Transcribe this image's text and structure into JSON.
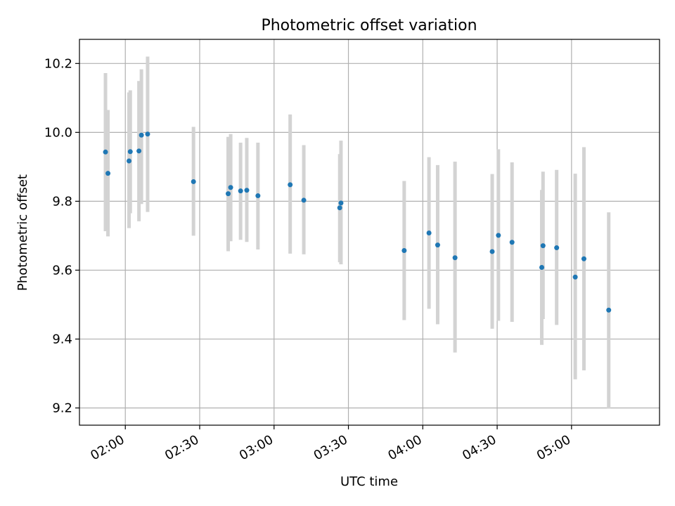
{
  "chart_data": {
    "type": "scatter",
    "title": "Photometric offset variation",
    "xlabel": "UTC time",
    "ylabel": "Photometric offset",
    "xlim": [
      "01:41:30",
      "05:35:30"
    ],
    "ylim": [
      9.15,
      10.27
    ],
    "x_ticks": [
      "02:00",
      "02:30",
      "03:00",
      "03:30",
      "04:00",
      "04:30",
      "05:00"
    ],
    "y_ticks": [
      "9.2",
      "9.4",
      "9.6",
      "9.8",
      "10.0",
      "10.2"
    ],
    "grid": true,
    "colors": {
      "marker": "#1f77b4",
      "errorbar": "#d3d3d3",
      "grid": "#b0b0b0"
    },
    "series": [
      {
        "points": [
          {
            "x": "01:52:00",
            "y": 9.943,
            "ylow": 9.713,
            "yhigh": 10.172
          },
          {
            "x": "01:53:00",
            "y": 9.881,
            "ylow": 9.698,
            "yhigh": 10.065
          },
          {
            "x": "01:61:30",
            "y": 9.917,
            "ylow": 9.722,
            "yhigh": 10.116
          },
          {
            "x": "01:62:00",
            "y": 9.944,
            "ylow": 9.765,
            "yhigh": 10.122
          },
          {
            "x": "01:65:30",
            "y": 9.946,
            "ylow": 9.742,
            "yhigh": 10.149
          },
          {
            "x": "01:66:30",
            "y": 9.992,
            "ylow": 9.792,
            "yhigh": 10.183
          },
          {
            "x": "01:69:00",
            "y": 9.995,
            "ylow": 9.769,
            "yhigh": 10.22
          },
          {
            "x": "02:27:30",
            "y": 9.857,
            "ylow": 9.7,
            "yhigh": 10.016
          },
          {
            "x": "02:41:30",
            "y": 9.822,
            "ylow": 9.655,
            "yhigh": 9.987
          },
          {
            "x": "02:42:30",
            "y": 9.84,
            "ylow": 9.684,
            "yhigh": 9.995
          },
          {
            "x": "02:46:30",
            "y": 9.83,
            "ylow": 9.688,
            "yhigh": 9.97
          },
          {
            "x": "02:49:00",
            "y": 9.832,
            "ylow": 9.682,
            "yhigh": 9.984
          },
          {
            "x": "02:53:30",
            "y": 9.816,
            "ylow": 9.66,
            "yhigh": 9.97
          },
          {
            "x": "03:06:30",
            "y": 9.848,
            "ylow": 9.648,
            "yhigh": 10.052
          },
          {
            "x": "03:12:00",
            "y": 9.803,
            "ylow": 9.646,
            "yhigh": 9.963
          },
          {
            "x": "03:26:30",
            "y": 9.781,
            "ylow": 9.623,
            "yhigh": 9.937
          },
          {
            "x": "03:27:00",
            "y": 9.795,
            "ylow": 9.617,
            "yhigh": 9.976
          },
          {
            "x": "03:52:30",
            "y": 9.657,
            "ylow": 9.455,
            "yhigh": 9.859
          },
          {
            "x": "04:02:30",
            "y": 9.708,
            "ylow": 9.488,
            "yhigh": 9.928
          },
          {
            "x": "04:06:00",
            "y": 9.673,
            "ylow": 9.443,
            "yhigh": 9.905
          },
          {
            "x": "04:13:00",
            "y": 9.636,
            "ylow": 9.361,
            "yhigh": 9.915
          },
          {
            "x": "04:28:00",
            "y": 9.654,
            "ylow": 9.43,
            "yhigh": 9.879
          },
          {
            "x": "04:30:30",
            "y": 9.701,
            "ylow": 9.453,
            "yhigh": 9.951
          },
          {
            "x": "04:36:00",
            "y": 9.681,
            "ylow": 9.45,
            "yhigh": 9.913
          },
          {
            "x": "04:48:00",
            "y": 9.608,
            "ylow": 9.383,
            "yhigh": 9.833
          },
          {
            "x": "04:48:30",
            "y": 9.671,
            "ylow": 9.458,
            "yhigh": 9.886
          },
          {
            "x": "04:54:00",
            "y": 9.665,
            "ylow": 9.441,
            "yhigh": 9.891
          },
          {
            "x": "05:01:30",
            "y": 9.58,
            "ylow": 9.283,
            "yhigh": 9.88
          },
          {
            "x": "05:05:00",
            "y": 9.633,
            "ylow": 9.309,
            "yhigh": 9.957
          },
          {
            "x": "05:15:00",
            "y": 9.484,
            "ylow": 9.198,
            "yhigh": 9.768
          }
        ]
      }
    ]
  }
}
